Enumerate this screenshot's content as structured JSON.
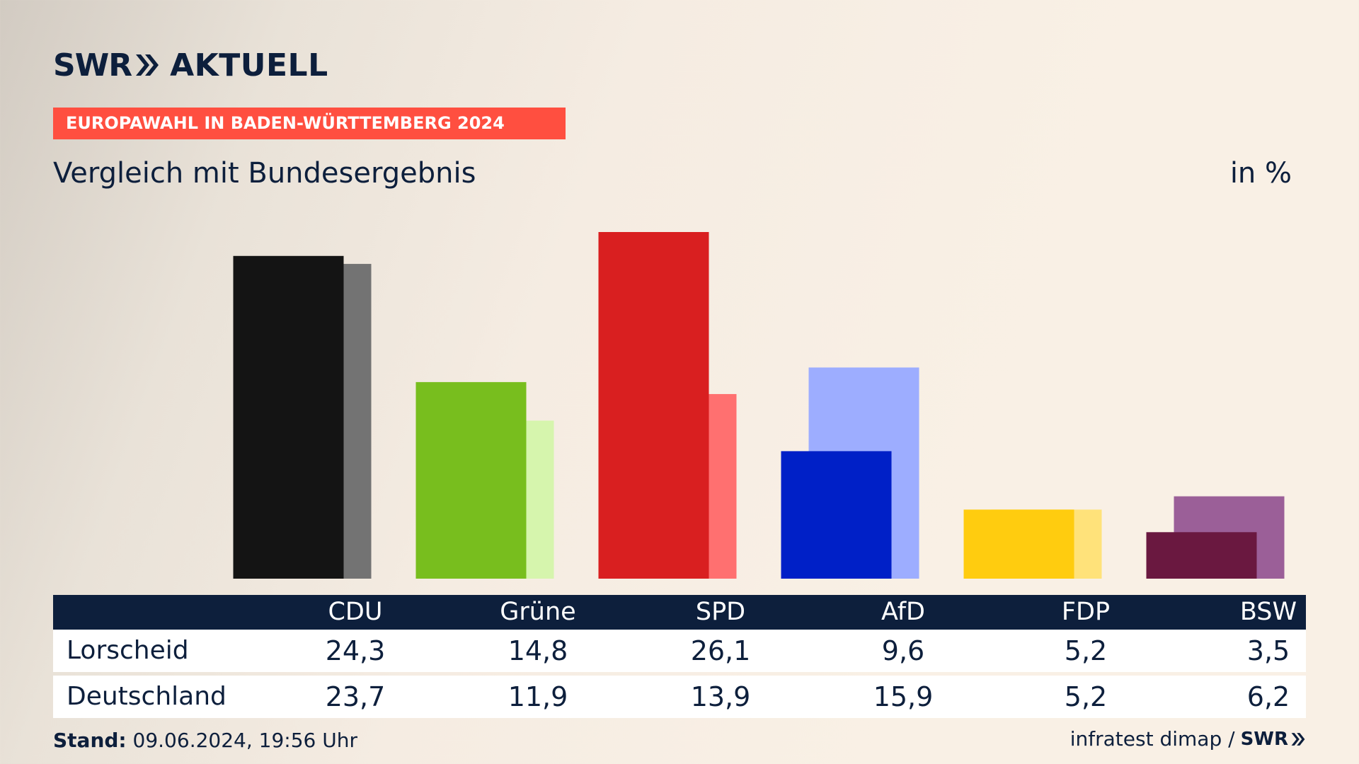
{
  "header": {
    "logo_text_1": "SWR",
    "logo_text_2": "AKTUELL",
    "banner": "EUROPAWAHL IN BADEN-WÜRTTEMBERG 2024",
    "subtitle": "Vergleich mit Bundesergebnis",
    "unit": "in %"
  },
  "table": {
    "rows": [
      {
        "label": "Lorscheid",
        "values": [
          "24,3",
          "14,8",
          "26,1",
          "9,6",
          "5,2",
          "3,5"
        ]
      },
      {
        "label": "Deutschland",
        "values": [
          "23,7",
          "11,9",
          "13,9",
          "15,9",
          "5,2",
          "6,2"
        ]
      }
    ]
  },
  "footer": {
    "stand_label": "Stand:",
    "stand_value": "09.06.2024, 19:56 Uhr",
    "source": "infratest dimap /",
    "source_logo": "SWR"
  },
  "chart_data": {
    "type": "bar",
    "categories": [
      "CDU",
      "Grüne",
      "SPD",
      "AfD",
      "FDP",
      "BSW"
    ],
    "series": [
      {
        "name": "Lorscheid",
        "values": [
          24.3,
          14.8,
          26.1,
          9.6,
          5.2,
          3.5
        ],
        "colors": [
          "#141414",
          "#78be1e",
          "#d91f20",
          "#0020c7",
          "#ffcc0f",
          "#6a1840"
        ]
      },
      {
        "name": "Deutschland",
        "values": [
          23.7,
          11.9,
          13.9,
          15.9,
          5.2,
          6.2
        ],
        "colors": [
          "#737373",
          "#d6f5ad",
          "#ff7070",
          "#9dadff",
          "#ffe27a",
          "#9b5f98"
        ]
      }
    ],
    "title": "Vergleich mit Bundesergebnis",
    "ylabel": "in %",
    "ylim": [
      0,
      26.1
    ],
    "grid": false,
    "legend": "none"
  }
}
